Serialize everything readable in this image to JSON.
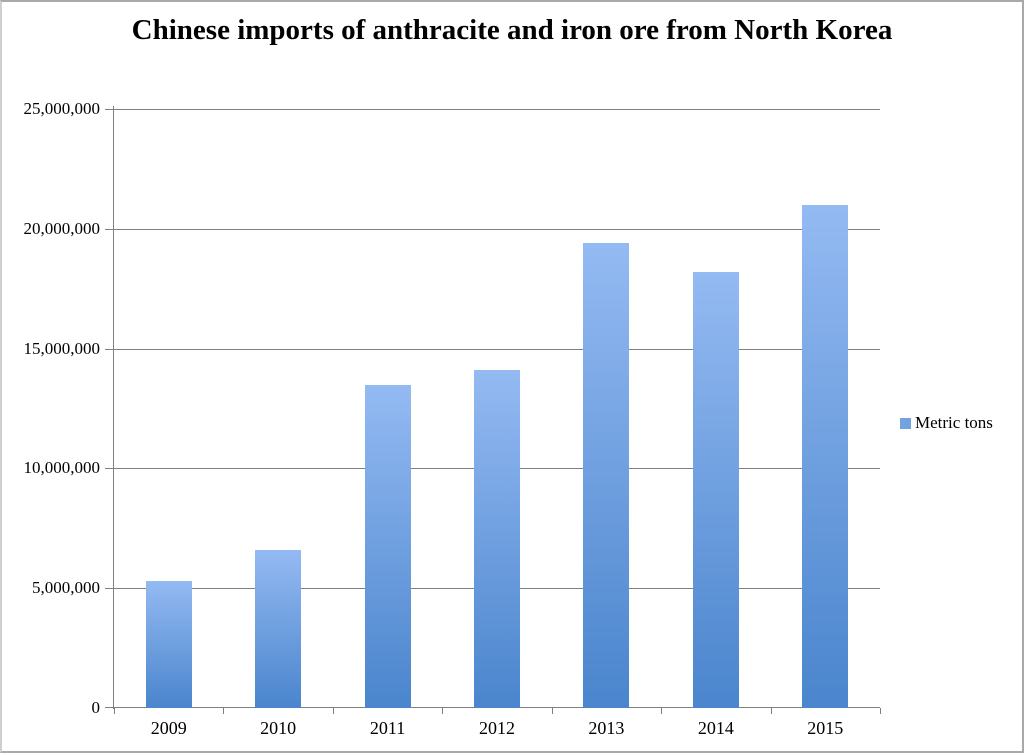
{
  "title": "Chinese imports of anthracite and iron ore from North Korea",
  "legend": {
    "label": "Metric tons"
  },
  "colors": {
    "bar_gradient_top": "#94baf2",
    "bar_gradient_bottom": "#4a85cd",
    "legend_swatch": "#72a2e0",
    "gridline": "#808080",
    "axis": "#808080",
    "frame_border": "#a9a9a9",
    "text": "#000000",
    "background": "#ffffff"
  },
  "chart_data": {
    "type": "bar",
    "title": "Chinese imports of anthracite and iron ore from North Korea",
    "categories": [
      "2009",
      "2010",
      "2011",
      "2012",
      "2013",
      "2014",
      "2015"
    ],
    "series": [
      {
        "name": "Metric tons",
        "values": [
          5300000,
          6600000,
          13500000,
          14100000,
          19400000,
          18200000,
          21000000
        ]
      }
    ],
    "xlabel": "",
    "ylabel": "",
    "ylim": [
      0,
      25000000
    ],
    "yticks": [
      {
        "value": 0,
        "label": "0"
      },
      {
        "value": 5000000,
        "label": "5,000,000"
      },
      {
        "value": 10000000,
        "label": "10,000,000"
      },
      {
        "value": 15000000,
        "label": "15,000,000"
      },
      {
        "value": 20000000,
        "label": "20,000,000"
      },
      {
        "value": 25000000,
        "label": "25,000,000"
      }
    ],
    "grid": true,
    "legend_position": "right"
  }
}
